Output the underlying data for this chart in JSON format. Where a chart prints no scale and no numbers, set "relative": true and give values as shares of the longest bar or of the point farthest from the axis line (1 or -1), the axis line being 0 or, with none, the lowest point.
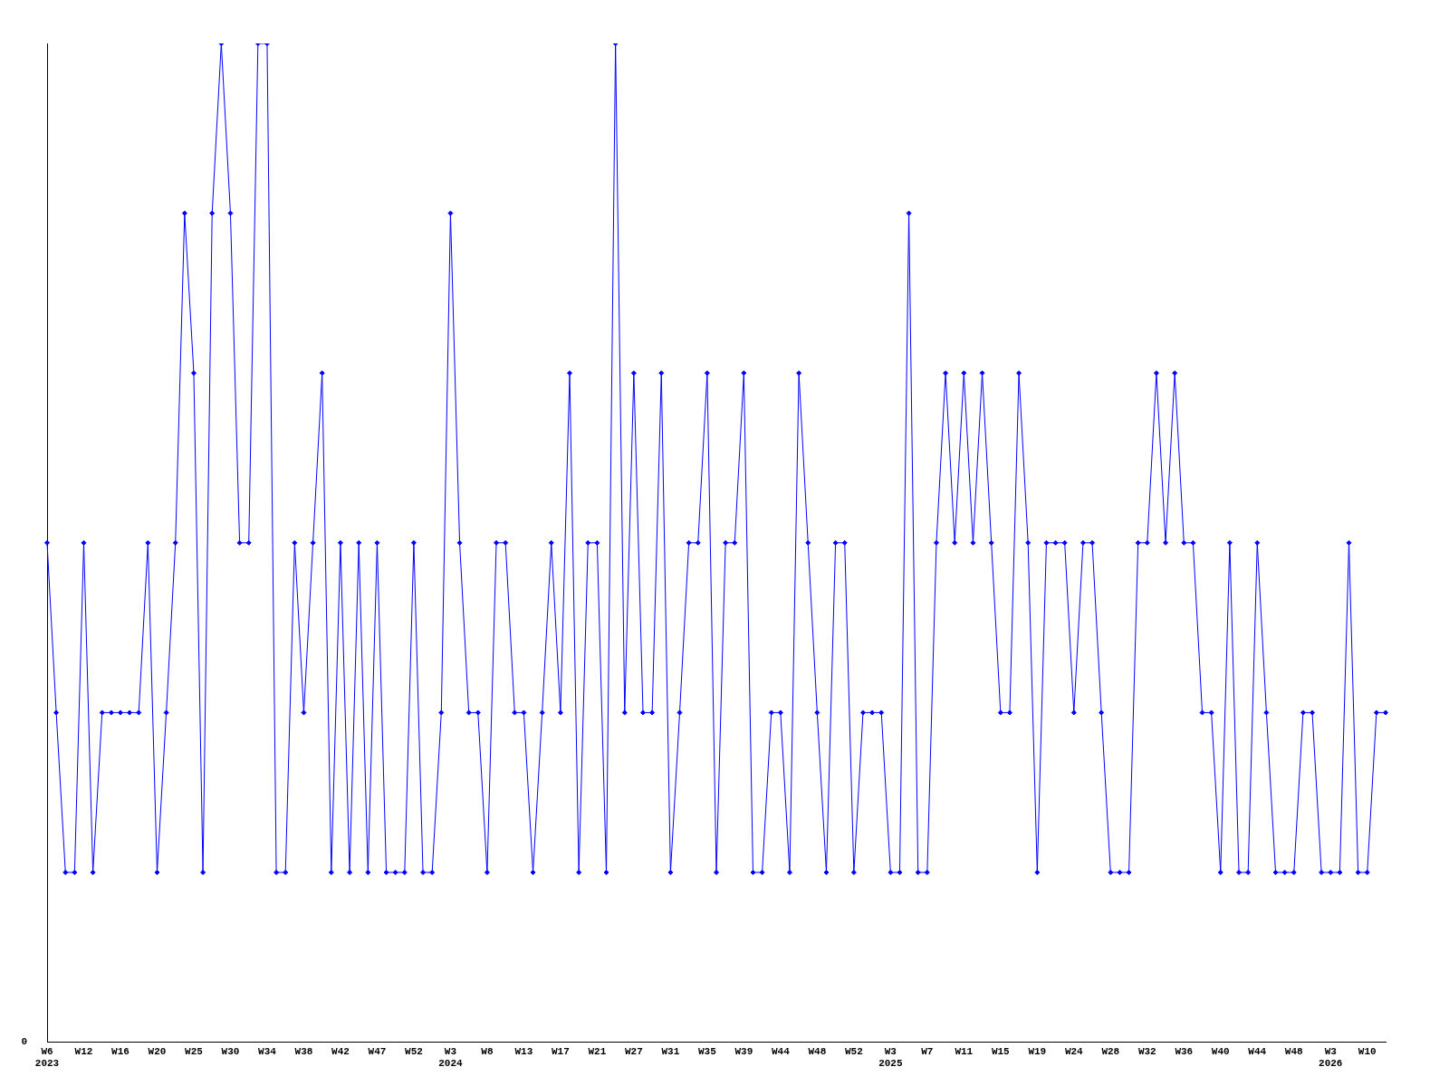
{
  "chart_data": {
    "type": "line",
    "relative": true,
    "color": "#0000ff",
    "marker": "diamond",
    "grid": false,
    "legend": false,
    "annotations": [
      "0"
    ],
    "categories": [
      "W6 2023",
      null,
      null,
      null,
      "W12",
      null,
      null,
      null,
      "W16",
      null,
      null,
      null,
      "W20",
      null,
      null,
      null,
      "W25",
      null,
      null,
      null,
      "W30",
      null,
      null,
      null,
      "W34",
      null,
      null,
      null,
      "W38",
      null,
      null,
      null,
      "W42",
      null,
      null,
      null,
      "W47",
      null,
      null,
      null,
      "W52",
      null,
      null,
      null,
      "W3 2024",
      null,
      null,
      null,
      "W8",
      null,
      null,
      null,
      "W13",
      null,
      null,
      null,
      "W17",
      null,
      null,
      null,
      "W21",
      null,
      null,
      null,
      "W27",
      null,
      null,
      null,
      "W31",
      null,
      null,
      null,
      "W35",
      null,
      null,
      null,
      "W39",
      null,
      null,
      null,
      "W44",
      null,
      null,
      null,
      "W48",
      null,
      null,
      null,
      "W52",
      null,
      null,
      null,
      "W3 2025",
      null,
      null,
      null,
      "W7",
      null,
      null,
      null,
      "W11",
      null,
      null,
      null,
      "W15",
      null,
      null,
      null,
      "W19",
      null,
      null,
      null,
      "W24",
      null,
      null,
      null,
      "W28",
      null,
      null,
      null,
      "W32",
      null,
      null,
      null,
      "W36",
      null,
      null,
      null,
      "W40",
      null,
      null,
      null,
      "W44",
      null,
      null,
      null,
      "W48",
      null,
      null,
      null,
      "W3 2026",
      null,
      null,
      null,
      "W10",
      null,
      null
    ],
    "values": [
      0.5,
      0.33,
      0.17,
      0.17,
      0.5,
      0.17,
      0.33,
      0.33,
      0.33,
      0.33,
      0.33,
      0.5,
      0.17,
      0.33,
      0.5,
      0.83,
      0.67,
      0.17,
      0.83,
      1,
      0.83,
      0.5,
      0.5,
      1,
      1,
      0.17,
      0.17,
      0.5,
      0.33,
      0.5,
      0.67,
      0.17,
      0.5,
      0.17,
      0.5,
      0.17,
      0.5,
      0.17,
      0.17,
      0.17,
      0.5,
      0.17,
      0.17,
      0.33,
      0.83,
      0.5,
      0.33,
      0.33,
      0.17,
      0.5,
      0.5,
      0.33,
      0.33,
      0.17,
      0.33,
      0.5,
      0.33,
      0.67,
      0.17,
      0.5,
      0.5,
      0.17,
      1,
      0.33,
      0.67,
      0.33,
      0.33,
      0.67,
      0.17,
      0.33,
      0.5,
      0.5,
      0.67,
      0.17,
      0.5,
      0.5,
      0.67,
      0.17,
      0.17,
      0.33,
      0.33,
      0.17,
      0.67,
      0.5,
      0.33,
      0.17,
      0.5,
      0.5,
      0.17,
      0.33,
      0.33,
      0.33,
      0.17,
      0.17,
      0.83,
      0.17,
      0.17,
      0.5,
      0.67,
      0.5,
      0.67,
      0.5,
      0.67,
      0.5,
      0.33,
      0.33,
      0.67,
      0.5,
      0.17,
      0.5,
      0.5,
      0.5,
      0.33,
      0.5,
      0.5,
      0.33,
      0.17,
      0.17,
      0.17,
      0.5,
      0.5,
      0.67,
      0.5,
      0.67,
      0.5,
      0.5,
      0.33,
      0.33,
      0.17,
      0.5,
      0.17,
      0.17,
      0.5,
      0.33,
      0.17,
      0.17,
      0.17,
      0.33,
      0.33,
      0.17,
      0.17,
      0.17,
      0.5,
      0.17,
      0.17,
      0.33,
      0.33
    ]
  }
}
